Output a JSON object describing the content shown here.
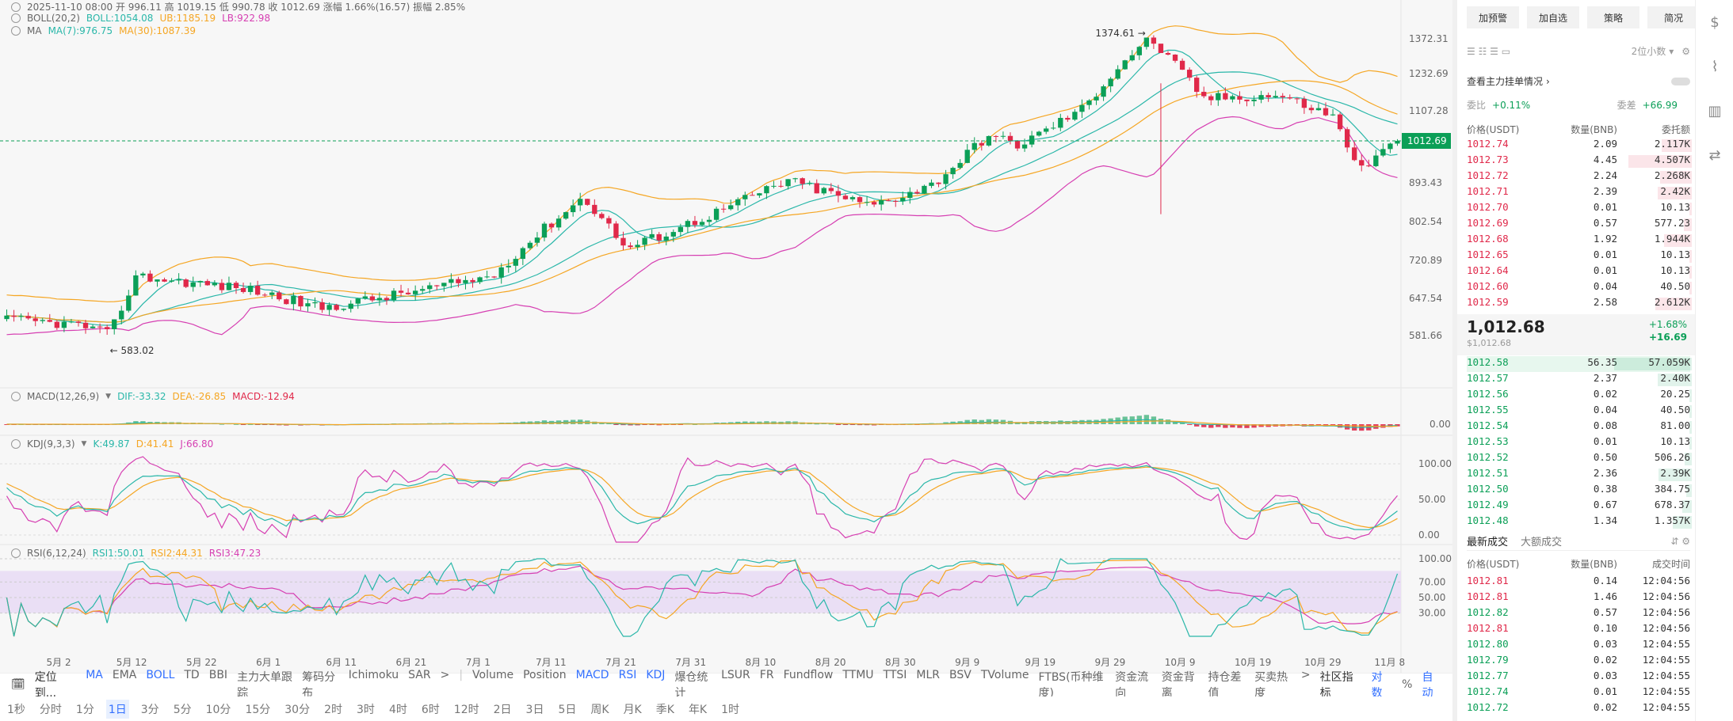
{
  "header": {
    "ohlc": "2025-11-10 08:00  开 996.11  高 1019.15  低 990.78  收 1012.69  涨幅 1.66%(16.57)  振幅 2.85%",
    "boll_title": "BOLL(20,2)",
    "boll_mid": "BOLL:1054.08",
    "boll_ub": "UB:1185.19",
    "boll_lb": "LB:922.98",
    "ma_title": "MA",
    "ma7": "MA(7):976.75",
    "ma30": "MA(30):1087.39"
  },
  "main": {
    "price_ticks": [
      "1372.31",
      "1232.69",
      "1107.28",
      "1012.69",
      "893.43",
      "802.54",
      "720.89",
      "647.54",
      "581.66"
    ],
    "current_price": "1012.69",
    "high_label": "1374.61 →",
    "low_label": "← 583.02",
    "date_ticks": [
      "5月 2",
      "5月 12",
      "5月 22",
      "6月 1",
      "6月 11",
      "6月 21",
      "7月 1",
      "7月 11",
      "7月 21",
      "7月 31",
      "8月 10",
      "8月 20",
      "8月 30",
      "9月 9",
      "9月 19",
      "9月 29",
      "10月 9",
      "10月 19",
      "10月 29",
      "11月 8"
    ]
  },
  "macd": {
    "title": "MACD(12,26,9)",
    "dif": "DIF:-33.32",
    "dea": "DEA:-26.85",
    "macd": "MACD:-12.94",
    "tick": "0.00"
  },
  "kdj": {
    "title": "KDJ(9,3,3)",
    "k": "K:49.87",
    "d": "D:41.41",
    "j": "J:66.80",
    "ticks": [
      "100.00",
      "50.00",
      "0.00"
    ]
  },
  "rsi": {
    "title": "RSI(6,12,24)",
    "r1": "RSI1:50.01",
    "r2": "RSI2:44.31",
    "r3": "RSI3:47.23",
    "ticks": [
      "100.00",
      "70.00",
      "50.00",
      "30.00"
    ]
  },
  "indicator_bar": {
    "locate": "定位到...",
    "items": [
      "MA",
      "EMA",
      "BOLL",
      "TD",
      "BBI",
      "主力大单跟踪",
      "筹码分布",
      "Ichimoku",
      "SAR",
      ">",
      "|",
      "Volume",
      "Position",
      "MACD",
      "RSI",
      "KDJ",
      "爆仓统计",
      "LSUR",
      "FR",
      "Fundflow",
      "TTMU",
      "TTSI",
      "MLR",
      "BSV",
      "TVolume",
      "FTBS(币种维度)",
      "资金流向",
      "资金背离",
      "持仓差值",
      "买卖热度",
      ">"
    ],
    "community": "社区指标",
    "log": "对数",
    "pct": "%",
    "auto": "自动"
  },
  "timeframes": [
    "1秒",
    "分时",
    "1分",
    "1日",
    "3分",
    "5分",
    "10分",
    "15分",
    "30分",
    "2时",
    "3时",
    "4时",
    "6时",
    "12时",
    "2日",
    "3日",
    "5日",
    "周K",
    "月K",
    "季K",
    "年K",
    "1时"
  ],
  "right": {
    "buttons": [
      "加预警",
      "加自选",
      "策略",
      "简况"
    ],
    "decimals": "2位小数",
    "view_main": "查看主力挂单情况",
    "weibi_label": "委比",
    "weibi": "+0.11%",
    "weicha_label": "委差",
    "weicha": "+66.99",
    "ob_head": [
      "价格(USDT)",
      "数量(BNB)",
      "委托额"
    ],
    "asks": [
      [
        "1012.74",
        "2.09",
        "2.117K"
      ],
      [
        "1012.73",
        "4.45",
        "4.507K"
      ],
      [
        "1012.72",
        "2.24",
        "2.268K"
      ],
      [
        "1012.71",
        "2.39",
        "2.42K"
      ],
      [
        "1012.70",
        "0.01",
        "10.13"
      ],
      [
        "1012.69",
        "0.57",
        "577.23"
      ],
      [
        "1012.68",
        "1.92",
        "1.944K"
      ],
      [
        "1012.65",
        "0.01",
        "10.13"
      ],
      [
        "1012.64",
        "0.01",
        "10.13"
      ],
      [
        "1012.60",
        "0.04",
        "40.50"
      ],
      [
        "1012.59",
        "2.58",
        "2.612K"
      ]
    ],
    "mid_price": "1,012.68",
    "mid_usd": "$1,012.68",
    "mid_pct": "+1.68%",
    "mid_chg": "+16.69",
    "bids": [
      [
        "1012.58",
        "56.35",
        "57.059K"
      ],
      [
        "1012.57",
        "2.37",
        "2.40K"
      ],
      [
        "1012.56",
        "0.02",
        "20.25"
      ],
      [
        "1012.55",
        "0.04",
        "40.50"
      ],
      [
        "1012.54",
        "0.08",
        "81.00"
      ],
      [
        "1012.53",
        "0.01",
        "10.13"
      ],
      [
        "1012.52",
        "0.50",
        "506.26"
      ],
      [
        "1012.51",
        "2.36",
        "2.39K"
      ],
      [
        "1012.50",
        "0.38",
        "384.75"
      ],
      [
        "1012.49",
        "0.67",
        "678.37"
      ],
      [
        "1012.48",
        "1.34",
        "1.357K"
      ]
    ],
    "trade_tabs": [
      "最新成交",
      "大额成交"
    ],
    "trade_head": [
      "价格(USDT)",
      "数量(BNB)",
      "成交时间"
    ],
    "trades": [
      [
        "1012.81",
        "0.14",
        "12:04:56",
        "r"
      ],
      [
        "1012.81",
        "1.46",
        "12:04:56",
        "r"
      ],
      [
        "1012.82",
        "0.57",
        "12:04:56",
        "g"
      ],
      [
        "1012.81",
        "0.10",
        "12:04:56",
        "r"
      ],
      [
        "1012.80",
        "0.03",
        "12:04:55",
        "g"
      ],
      [
        "1012.79",
        "0.02",
        "12:04:55",
        "g"
      ],
      [
        "1012.77",
        "0.03",
        "12:04:55",
        "g"
      ],
      [
        "1012.74",
        "0.01",
        "12:04:55",
        "g"
      ],
      [
        "1012.72",
        "0.02",
        "12:04:55",
        "g"
      ]
    ]
  },
  "colors": {
    "up": "#0b9f57",
    "down": "#e0294a",
    "boll_mid": "#2ab7a9",
    "boll_ub": "#f5a623",
    "boll_lb": "#d63fb2",
    "ma7": "#2ab7a9",
    "ma30": "#f5a623",
    "rsi_band": "#eadff5"
  }
}
